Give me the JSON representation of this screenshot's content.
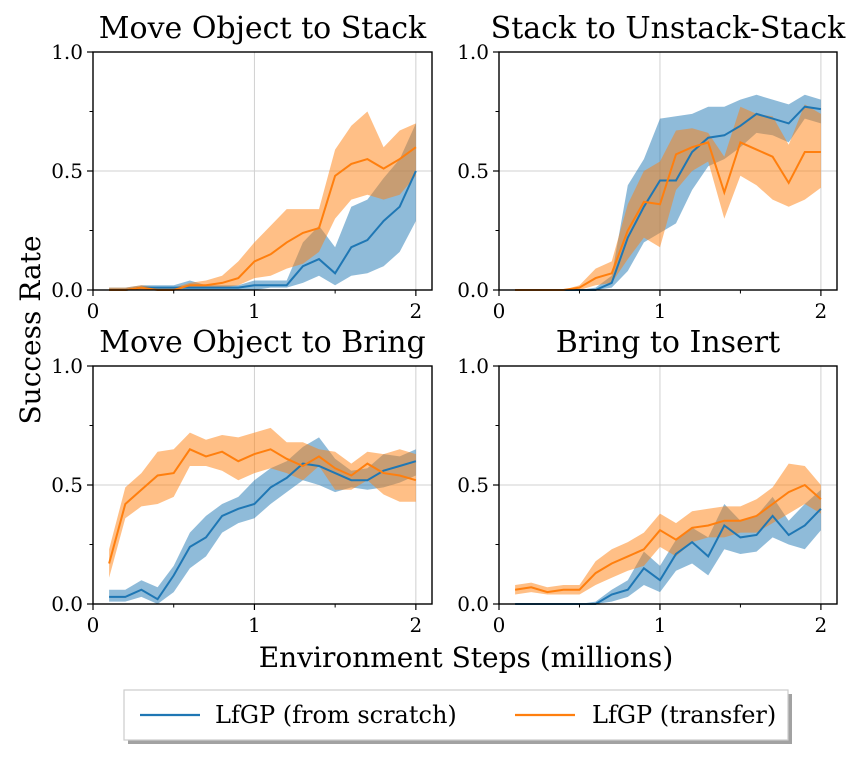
{
  "figure": {
    "ylabel": "Success Rate",
    "xlabel": "Environment Steps (millions)"
  },
  "legend": {
    "items": [
      {
        "label": "LfGP (from scratch)",
        "color": "#1f77b4"
      },
      {
        "label": "LfGP (transfer)",
        "color": "#ff7f0e"
      }
    ]
  },
  "chart_data": [
    {
      "type": "line",
      "title": "Move Object to Stack",
      "xlim": [
        0,
        2.1
      ],
      "ylim": [
        0,
        1.0
      ],
      "x_ticks": [
        "0",
        "1",
        "2"
      ],
      "y_ticks": [
        "0.0",
        "0.5",
        "1.0"
      ],
      "grid": true,
      "x": [
        0.1,
        0.2,
        0.3,
        0.4,
        0.5,
        0.6,
        0.7,
        0.8,
        0.9,
        1.0,
        1.1,
        1.2,
        1.3,
        1.4,
        1.5,
        1.6,
        1.7,
        1.8,
        1.9,
        2.0
      ],
      "series": [
        {
          "name": "LfGP (from scratch)",
          "values": [
            0.0,
            0.0,
            0.01,
            0.01,
            0.01,
            0.01,
            0.01,
            0.01,
            0.01,
            0.02,
            0.02,
            0.02,
            0.1,
            0.13,
            0.07,
            0.18,
            0.21,
            0.29,
            0.35,
            0.5
          ],
          "lower": [
            0.0,
            0.0,
            0.0,
            0.0,
            0.0,
            0.0,
            0.0,
            0.0,
            0.0,
            0.0,
            0.01,
            0.01,
            0.03,
            0.06,
            0.02,
            0.06,
            0.07,
            0.1,
            0.16,
            0.29
          ],
          "upper": [
            0.01,
            0.01,
            0.02,
            0.02,
            0.02,
            0.04,
            0.02,
            0.02,
            0.02,
            0.04,
            0.04,
            0.04,
            0.2,
            0.27,
            0.18,
            0.35,
            0.38,
            0.47,
            0.55,
            0.7
          ]
        },
        {
          "name": "LfGP (transfer)",
          "values": [
            0.0,
            0.0,
            0.01,
            0.0,
            0.0,
            0.02,
            0.02,
            0.03,
            0.05,
            0.12,
            0.15,
            0.2,
            0.24,
            0.26,
            0.48,
            0.53,
            0.55,
            0.51,
            0.55,
            0.6
          ],
          "lower": [
            0.0,
            0.0,
            0.0,
            0.0,
            0.0,
            0.01,
            0.01,
            0.01,
            0.02,
            0.05,
            0.06,
            0.09,
            0.11,
            0.16,
            0.3,
            0.38,
            0.4,
            0.38,
            0.4,
            0.48
          ],
          "upper": [
            0.01,
            0.01,
            0.02,
            0.01,
            0.01,
            0.03,
            0.04,
            0.06,
            0.12,
            0.2,
            0.27,
            0.34,
            0.34,
            0.34,
            0.59,
            0.69,
            0.75,
            0.6,
            0.67,
            0.7
          ]
        }
      ]
    },
    {
      "type": "line",
      "title": "Stack to Unstack-Stack",
      "xlim": [
        0,
        2.1
      ],
      "ylim": [
        0,
        1.0
      ],
      "x_ticks": [
        "0",
        "1",
        "2"
      ],
      "y_ticks": [
        "0.0",
        "0.5",
        "1.0"
      ],
      "grid": true,
      "x": [
        0.1,
        0.2,
        0.3,
        0.4,
        0.5,
        0.6,
        0.7,
        0.8,
        0.9,
        1.0,
        1.1,
        1.2,
        1.3,
        1.4,
        1.5,
        1.6,
        1.7,
        1.8,
        1.9,
        2.0
      ],
      "series": [
        {
          "name": "LfGP (from scratch)",
          "values": [
            0.0,
            0.0,
            0.0,
            0.0,
            0.0,
            0.0,
            0.03,
            0.22,
            0.35,
            0.46,
            0.46,
            0.58,
            0.64,
            0.65,
            0.69,
            0.74,
            0.72,
            0.7,
            0.77,
            0.76
          ],
          "lower": [
            0.0,
            0.0,
            0.0,
            0.0,
            0.0,
            0.0,
            0.01,
            0.08,
            0.2,
            0.24,
            0.28,
            0.42,
            0.52,
            0.55,
            0.6,
            0.66,
            0.65,
            0.62,
            0.72,
            0.7
          ],
          "upper": [
            0.0,
            0.0,
            0.0,
            0.0,
            0.0,
            0.01,
            0.06,
            0.44,
            0.55,
            0.72,
            0.73,
            0.74,
            0.77,
            0.77,
            0.8,
            0.82,
            0.8,
            0.78,
            0.82,
            0.8
          ]
        },
        {
          "name": "LfGP (transfer)",
          "values": [
            0.0,
            0.0,
            0.0,
            0.0,
            0.01,
            0.05,
            0.07,
            0.25,
            0.37,
            0.36,
            0.57,
            0.6,
            0.62,
            0.41,
            0.62,
            0.59,
            0.56,
            0.45,
            0.58,
            0.58
          ],
          "lower": [
            0.0,
            0.0,
            0.0,
            0.0,
            0.0,
            0.02,
            0.03,
            0.13,
            0.22,
            0.18,
            0.42,
            0.5,
            0.54,
            0.3,
            0.48,
            0.44,
            0.38,
            0.35,
            0.38,
            0.43
          ],
          "upper": [
            0.0,
            0.0,
            0.0,
            0.0,
            0.02,
            0.09,
            0.12,
            0.36,
            0.5,
            0.54,
            0.67,
            0.68,
            0.66,
            0.56,
            0.77,
            0.74,
            0.73,
            0.61,
            0.78,
            0.74
          ]
        }
      ]
    },
    {
      "type": "line",
      "title": "Move Object to Bring",
      "xlim": [
        0,
        2.1
      ],
      "ylim": [
        0,
        1.0
      ],
      "x_ticks": [
        "0",
        "1",
        "2"
      ],
      "y_ticks": [
        "0.0",
        "0.5",
        "1.0"
      ],
      "grid": true,
      "x": [
        0.1,
        0.2,
        0.3,
        0.4,
        0.5,
        0.6,
        0.7,
        0.8,
        0.9,
        1.0,
        1.1,
        1.2,
        1.3,
        1.4,
        1.5,
        1.6,
        1.7,
        1.8,
        1.9,
        2.0
      ],
      "series": [
        {
          "name": "LfGP (from scratch)",
          "values": [
            0.03,
            0.03,
            0.06,
            0.02,
            0.12,
            0.24,
            0.28,
            0.37,
            0.4,
            0.42,
            0.49,
            0.53,
            0.59,
            0.58,
            0.55,
            0.52,
            0.52,
            0.56,
            0.58,
            0.6
          ],
          "lower": [
            0.01,
            0.01,
            0.03,
            0.0,
            0.05,
            0.15,
            0.2,
            0.3,
            0.34,
            0.36,
            0.42,
            0.47,
            0.52,
            0.5,
            0.47,
            0.49,
            0.48,
            0.49,
            0.51,
            0.54
          ],
          "upper": [
            0.06,
            0.06,
            0.1,
            0.07,
            0.16,
            0.3,
            0.37,
            0.42,
            0.45,
            0.52,
            0.57,
            0.6,
            0.66,
            0.7,
            0.61,
            0.56,
            0.57,
            0.63,
            0.62,
            0.65
          ]
        },
        {
          "name": "LfGP (transfer)",
          "values": [
            0.17,
            0.42,
            0.48,
            0.54,
            0.55,
            0.65,
            0.62,
            0.64,
            0.6,
            0.63,
            0.65,
            0.61,
            0.58,
            0.62,
            0.57,
            0.54,
            0.59,
            0.55,
            0.54,
            0.52
          ],
          "lower": [
            0.11,
            0.36,
            0.41,
            0.42,
            0.45,
            0.58,
            0.58,
            0.56,
            0.52,
            0.55,
            0.57,
            0.55,
            0.52,
            0.58,
            0.48,
            0.48,
            0.52,
            0.46,
            0.43,
            0.43
          ],
          "upper": [
            0.23,
            0.49,
            0.55,
            0.64,
            0.65,
            0.72,
            0.69,
            0.71,
            0.7,
            0.72,
            0.74,
            0.68,
            0.68,
            0.65,
            0.64,
            0.59,
            0.64,
            0.63,
            0.65,
            0.63
          ]
        }
      ]
    },
    {
      "type": "line",
      "title": "Bring to Insert",
      "xlim": [
        0,
        2.1
      ],
      "ylim": [
        0,
        1.0
      ],
      "x_ticks": [
        "0",
        "1",
        "2"
      ],
      "y_ticks": [
        "0.0",
        "0.5",
        "1.0"
      ],
      "grid": true,
      "x": [
        0.1,
        0.2,
        0.3,
        0.4,
        0.5,
        0.6,
        0.7,
        0.8,
        0.9,
        1.0,
        1.1,
        1.2,
        1.3,
        1.4,
        1.5,
        1.6,
        1.7,
        1.8,
        1.9,
        2.0
      ],
      "series": [
        {
          "name": "LfGP (from scratch)",
          "values": [
            0.0,
            0.0,
            0.0,
            0.0,
            0.0,
            0.0,
            0.04,
            0.06,
            0.15,
            0.1,
            0.21,
            0.26,
            0.2,
            0.33,
            0.28,
            0.29,
            0.37,
            0.29,
            0.33,
            0.4
          ],
          "lower": [
            0.0,
            0.0,
            0.0,
            0.0,
            0.0,
            0.0,
            0.01,
            0.03,
            0.08,
            0.05,
            0.14,
            0.17,
            0.12,
            0.23,
            0.21,
            0.22,
            0.28,
            0.25,
            0.23,
            0.31
          ],
          "upper": [
            0.0,
            0.0,
            0.0,
            0.0,
            0.0,
            0.01,
            0.06,
            0.1,
            0.22,
            0.16,
            0.27,
            0.32,
            0.28,
            0.42,
            0.35,
            0.37,
            0.45,
            0.35,
            0.42,
            0.48
          ]
        },
        {
          "name": "LfGP (transfer)",
          "values": [
            0.06,
            0.07,
            0.05,
            0.06,
            0.06,
            0.13,
            0.17,
            0.2,
            0.23,
            0.31,
            0.27,
            0.32,
            0.33,
            0.35,
            0.35,
            0.37,
            0.42,
            0.47,
            0.5,
            0.44
          ],
          "lower": [
            0.04,
            0.05,
            0.04,
            0.04,
            0.04,
            0.08,
            0.11,
            0.14,
            0.16,
            0.24,
            0.2,
            0.26,
            0.28,
            0.28,
            0.3,
            0.3,
            0.34,
            0.38,
            0.42,
            0.38
          ],
          "upper": [
            0.08,
            0.09,
            0.07,
            0.08,
            0.08,
            0.18,
            0.23,
            0.26,
            0.3,
            0.38,
            0.34,
            0.39,
            0.4,
            0.41,
            0.41,
            0.44,
            0.49,
            0.59,
            0.58,
            0.5
          ]
        }
      ]
    }
  ]
}
